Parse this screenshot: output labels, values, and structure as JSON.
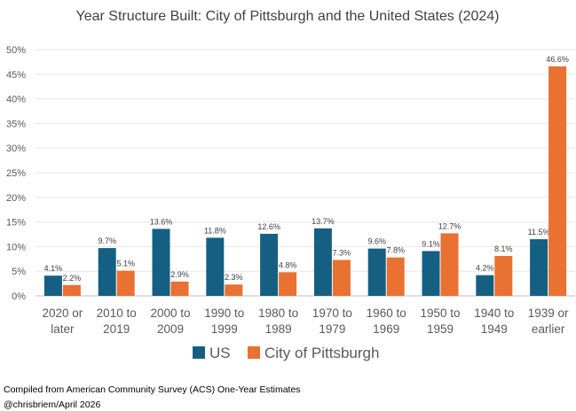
{
  "chart_data": {
    "type": "bar",
    "title": "Year Structure Built: City of Pittsburgh and the United States (2024)",
    "categories": [
      [
        "2020 or",
        "later"
      ],
      [
        "2010 to",
        "2019"
      ],
      [
        "2000 to",
        "2009"
      ],
      [
        "1990 to",
        "1999"
      ],
      [
        "1980 to",
        "1989"
      ],
      [
        "1970 to",
        "1979"
      ],
      [
        "1960 to",
        "1969"
      ],
      [
        "1950 to",
        "1959"
      ],
      [
        "1940 to",
        "1949"
      ],
      [
        "1939 or",
        "earlier"
      ]
    ],
    "series": [
      {
        "name": "US",
        "color": "#156082",
        "values": [
          4.1,
          9.7,
          13.6,
          11.8,
          12.6,
          13.7,
          9.6,
          9.1,
          4.2,
          11.5
        ],
        "labels": [
          "4.1%",
          "9.7%",
          "13.6%",
          "11.8%",
          "12.6%",
          "13.7%",
          "9.6%",
          "9.1%",
          "4.2%",
          "11.5%"
        ]
      },
      {
        "name": "City of Pittsburgh",
        "color": "#E97132",
        "values": [
          2.2,
          5.1,
          2.9,
          2.3,
          4.8,
          7.3,
          7.8,
          12.7,
          8.1,
          46.6
        ],
        "labels": [
          "2.2%",
          "5.1%",
          "2.9%",
          "2.3%",
          "4.8%",
          "7.3%",
          "7.8%",
          "12.7%",
          "8.1%",
          "46.6%"
        ]
      }
    ],
    "yticks": [
      0,
      5,
      10,
      15,
      20,
      25,
      30,
      35,
      40,
      45,
      50
    ],
    "ytick_labels": [
      "0%",
      "5%",
      "10%",
      "15%",
      "20%",
      "25%",
      "30%",
      "35%",
      "40%",
      "45%",
      "50%"
    ],
    "ylim": [
      0,
      50
    ],
    "grid": true,
    "legend_position": "bottom"
  },
  "source": {
    "line1": "Compiled from American Community Survey (ACS) One-Year Estimates",
    "line2": "@chrisbriem/April 2026"
  }
}
